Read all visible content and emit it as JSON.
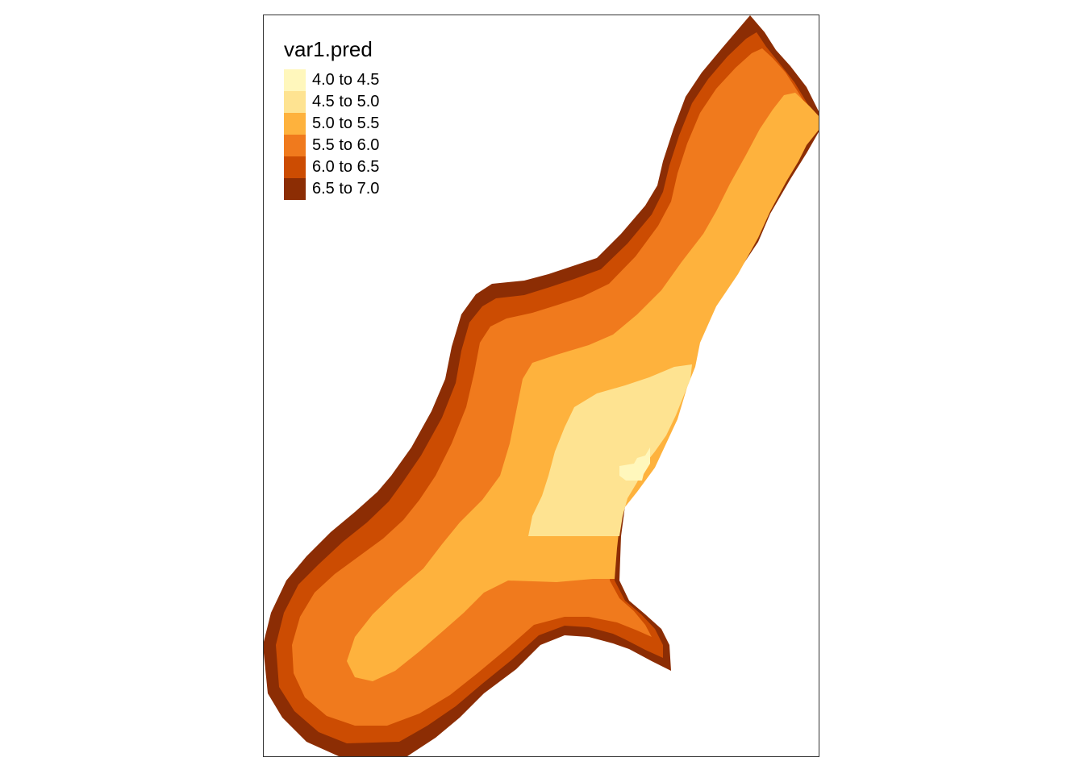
{
  "legend": {
    "title": "var1.pred",
    "entries": [
      {
        "label": "4.0 to 4.5",
        "color": "#FFF7BC"
      },
      {
        "label": "4.5 to 5.0",
        "color": "#FEE391"
      },
      {
        "label": "5.0 to 5.5",
        "color": "#FEB23D"
      },
      {
        "label": "5.5 to 6.0",
        "color": "#F07A1D"
      },
      {
        "label": "6.0 to 6.5",
        "color": "#CC4C02"
      },
      {
        "label": "6.5 to 7.0",
        "color": "#8C2D04"
      }
    ]
  },
  "map": {
    "type": "raster",
    "variable": "var1.pred"
  }
}
